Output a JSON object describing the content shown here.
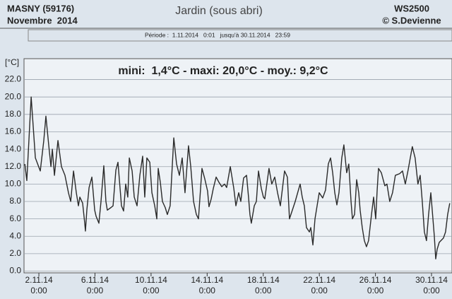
{
  "header": {
    "station": "MASNY (59176)",
    "month": "Novembre  2014",
    "device": "WS2500",
    "author": "© S.Devienne"
  },
  "chart_data": {
    "type": "line",
    "title": "Jardin (sous abri)",
    "subtitle": "Période :  1.11.2014   0:01   jusqu'à 30.11.2014   23:59",
    "ylabel": "[°C]",
    "annotation": "mini:  1,4°C - maxi: 20,0°C - moy.: 9,2°C",
    "color": "#2a2a2a",
    "grid": true,
    "xlim": [
      0.94,
      31.46
    ],
    "ylim": [
      -0.2,
      24.4
    ],
    "xticks": [
      {
        "value": 2,
        "label": "2.11.14\n0:00"
      },
      {
        "value": 6,
        "label": "6.11.14\n0:00"
      },
      {
        "value": 10,
        "label": "10.11.14\n0:00"
      },
      {
        "value": 14,
        "label": "14.11.14\n0:00"
      },
      {
        "value": 18,
        "label": "18.11.14\n0:00"
      },
      {
        "value": 22,
        "label": "22.11.14\n0:00"
      },
      {
        "value": 26,
        "label": "26.11.14\n0:00"
      },
      {
        "value": 30,
        "label": "30.11.14\n0:00"
      }
    ],
    "yticks": [
      {
        "value": 0,
        "label": "0.0"
      },
      {
        "value": 2,
        "label": "2.0"
      },
      {
        "value": 4,
        "label": "4.0"
      },
      {
        "value": 6,
        "label": "6.0"
      },
      {
        "value": 8,
        "label": "8.0"
      },
      {
        "value": 10,
        "label": "10.0"
      },
      {
        "value": 12,
        "label": "12.0"
      },
      {
        "value": 14,
        "label": "14.0"
      },
      {
        "value": 16,
        "label": "16.0"
      },
      {
        "value": 18,
        "label": "18.0"
      },
      {
        "value": 20,
        "label": "20.0"
      },
      {
        "value": 22,
        "label": "22.0"
      }
    ],
    "x": [
      1.0,
      1.14,
      1.45,
      1.75,
      2.1,
      2.35,
      2.5,
      2.7,
      2.86,
      2.96,
      3.11,
      3.36,
      3.61,
      3.86,
      4.11,
      4.27,
      4.47,
      4.67,
      4.82,
      4.92,
      5.12,
      5.27,
      5.32,
      5.42,
      5.58,
      5.78,
      5.98,
      6.08,
      6.28,
      6.43,
      6.63,
      6.78,
      6.88,
      7.14,
      7.29,
      7.49,
      7.64,
      7.89,
      8.04,
      8.19,
      8.34,
      8.45,
      8.65,
      8.8,
      9.0,
      9.2,
      9.4,
      9.55,
      9.7,
      9.91,
      10.06,
      10.26,
      10.41,
      10.51,
      10.66,
      10.81,
      11.01,
      11.16,
      11.36,
      11.62,
      11.82,
      12.02,
      12.22,
      12.42,
      12.67,
      12.83,
      13.03,
      13.23,
      13.38,
      13.63,
      13.83,
      14.03,
      14.13,
      14.29,
      14.44,
      14.64,
      14.84,
      15.04,
      15.24,
      15.39,
      15.65,
      15.9,
      16.05,
      16.25,
      16.4,
      16.6,
      16.81,
      16.95,
      17.05,
      17.15,
      17.36,
      17.51,
      17.66,
      17.86,
      18.01,
      18.11,
      18.41,
      18.61,
      18.82,
      19.02,
      19.22,
      19.52,
      19.72,
      19.87,
      20.28,
      20.63,
      20.78,
      20.93,
      21.08,
      21.29,
      21.39,
      21.54,
      21.69,
      21.99,
      22.24,
      22.44,
      22.64,
      22.8,
      22.95,
      23.1,
      23.25,
      23.4,
      23.6,
      23.75,
      23.95,
      24.1,
      24.26,
      24.36,
      24.51,
      24.66,
      24.81,
      24.91,
      25.06,
      25.21,
      25.36,
      25.51,
      25.72,
      25.87,
      26.02,
      26.12,
      26.22,
      26.42,
      26.67,
      26.82,
      27.02,
      27.22,
      27.42,
      27.73,
      27.93,
      28.13,
      28.33,
      28.63,
      28.83,
      29.03,
      29.19,
      29.34,
      29.49,
      29.64,
      29.79,
      29.95,
      30.1,
      30.2,
      30.3,
      30.4,
      30.55,
      30.85,
      31.0,
      31.15,
      31.3
    ],
    "values": [
      12.3,
      10.4,
      20.0,
      13.0,
      11.5,
      15.0,
      17.8,
      14.5,
      12.0,
      14.0,
      11.0,
      15.0,
      12.0,
      11.0,
      9.0,
      8.0,
      11.5,
      9.0,
      7.5,
      8.5,
      7.8,
      5.5,
      4.6,
      7.0,
      9.6,
      10.8,
      7.0,
      6.3,
      5.5,
      8.0,
      12.1,
      8.0,
      7.0,
      7.3,
      7.5,
      11.6,
      12.5,
      7.5,
      6.9,
      10.0,
      8.5,
      13.0,
      11.5,
      8.5,
      7.5,
      11.0,
      13.2,
      8.5,
      13.0,
      12.5,
      9.0,
      7.5,
      6.0,
      11.8,
      10.2,
      8.0,
      7.3,
      6.5,
      7.5,
      15.3,
      12.3,
      11.0,
      13.0,
      9.0,
      14.4,
      12.0,
      8.0,
      6.5,
      6.0,
      11.8,
      10.6,
      9.2,
      7.4,
      8.3,
      9.5,
      10.8,
      10.2,
      9.7,
      10.0,
      9.6,
      12.0,
      9.5,
      7.5,
      9.0,
      8.0,
      10.7,
      11.0,
      8.5,
      6.5,
      5.5,
      7.5,
      8.0,
      11.5,
      9.5,
      8.5,
      8.3,
      11.8,
      10.0,
      10.8,
      9.0,
      7.5,
      11.5,
      10.8,
      6.0,
      8.0,
      10.0,
      8.5,
      7.5,
      5.0,
      4.5,
      5.0,
      3.0,
      6.0,
      9.0,
      8.4,
      9.3,
      12.3,
      13.0,
      11.3,
      9.0,
      7.6,
      9.0,
      13.0,
      14.5,
      11.3,
      12.3,
      8.0,
      6.0,
      6.5,
      10.5,
      9.0,
      7.0,
      5.0,
      3.5,
      2.8,
      3.5,
      6.5,
      8.5,
      6.0,
      9.2,
      11.8,
      11.3,
      9.8,
      10.0,
      8.0,
      9.0,
      11.0,
      11.2,
      11.5,
      10.0,
      11.6,
      14.3,
      13.0,
      10.0,
      11.0,
      8.0,
      4.5,
      3.5,
      6.5,
      9.0,
      6.0,
      4.0,
      1.4,
      2.5,
      3.3,
      3.8,
      4.5,
      6.5,
      7.8
    ]
  }
}
